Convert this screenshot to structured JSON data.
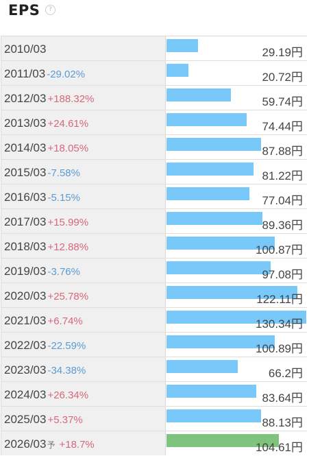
{
  "title": "EPS",
  "help_symbol": "?",
  "unit": "円",
  "forecast_marker": "予",
  "colors": {
    "bar_actual": "#78c8fa",
    "bar_forecast": "#7ec47e",
    "change_up": "#d9667a",
    "change_down": "#5b9bd5"
  },
  "chart_data": {
    "type": "bar",
    "orientation": "horizontal",
    "title": "EPS",
    "categories": [
      "2010/03",
      "2011/03",
      "2012/03",
      "2013/03",
      "2014/03",
      "2015/03",
      "2016/03",
      "2017/03",
      "2018/03",
      "2019/03",
      "2020/03",
      "2021/03",
      "2022/03",
      "2023/03",
      "2024/03",
      "2025/03",
      "2026/03"
    ],
    "values": [
      29.19,
      20.72,
      59.74,
      74.44,
      87.88,
      81.22,
      77.04,
      89.36,
      100.87,
      97.08,
      122.11,
      130.34,
      100.89,
      66.2,
      83.64,
      88.13,
      104.61
    ],
    "value_labels": [
      "29.19円",
      "20.72円",
      "59.74円",
      "74.44円",
      "87.88円",
      "81.22円",
      "77.04円",
      "89.36円",
      "100.87円",
      "97.08円",
      "122.11円",
      "130.34円",
      "100.89円",
      "66.2円",
      "83.64円",
      "88.13円",
      "104.61円"
    ],
    "changes": [
      "",
      "-29.02%",
      "+188.32%",
      "+24.61%",
      "+18.05%",
      "-7.58%",
      "-5.15%",
      "+15.99%",
      "+12.88%",
      "-3.76%",
      "+25.78%",
      "+6.74%",
      "-22.59%",
      "-34.38%",
      "+26.34%",
      "+5.37%",
      "+18.7%"
    ],
    "forecast": [
      false,
      false,
      false,
      false,
      false,
      false,
      false,
      false,
      false,
      false,
      false,
      false,
      false,
      false,
      false,
      false,
      true
    ],
    "xlim": [
      0,
      130.34
    ]
  }
}
